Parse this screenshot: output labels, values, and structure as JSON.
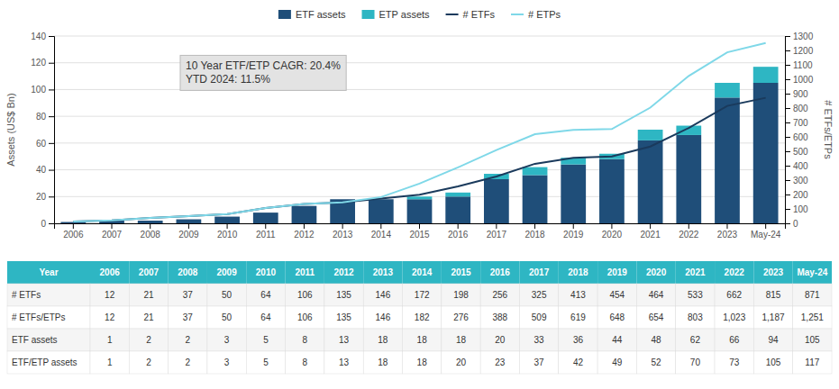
{
  "chart_data": {
    "type": "bar",
    "stacked": true,
    "grid": true,
    "categories": [
      "2006",
      "2007",
      "2008",
      "2009",
      "2010",
      "2011",
      "2012",
      "2013",
      "2014",
      "2015",
      "2016",
      "2017",
      "2018",
      "2019",
      "2020",
      "2021",
      "2022",
      "2023",
      "May-24"
    ],
    "ylabel": "Assets (US$ Bn)",
    "y2label": "# ETFs/ETPs",
    "ylim": [
      0,
      140
    ],
    "yticks": [
      0,
      20,
      40,
      60,
      80,
      100,
      120,
      140
    ],
    "y2lim": [
      0,
      1300
    ],
    "y2ticks": [
      0,
      100,
      200,
      300,
      400,
      500,
      600,
      700,
      800,
      900,
      1000,
      1100,
      1200,
      1300
    ],
    "annotations": [
      "10 Year ETF/ETP CAGR: 20.4%\nYTD 2024: 11.5%"
    ],
    "series": [
      {
        "name": "ETF assets",
        "type": "bar",
        "color": "#1f4e79",
        "values": [
          1,
          2,
          2,
          3,
          5,
          8,
          13,
          18,
          18,
          18,
          20,
          33,
          36,
          44,
          48,
          62,
          66,
          94,
          105
        ]
      },
      {
        "name": "ETP assets",
        "type": "bar",
        "color": "#2eb6c3",
        "values": [
          0,
          0,
          0,
          0,
          0,
          0,
          0,
          0,
          0,
          2,
          3,
          4,
          6,
          5,
          4,
          8,
          7,
          11,
          12
        ]
      },
      {
        "name": "# ETFs",
        "type": "line",
        "axis": "y2",
        "color": "#1a3a5c",
        "values": [
          12,
          21,
          37,
          50,
          64,
          106,
          135,
          146,
          172,
          198,
          256,
          325,
          413,
          454,
          464,
          533,
          662,
          815,
          871
        ]
      },
      {
        "name": "# ETPs",
        "type": "line",
        "axis": "y2",
        "color": "#7fd8e8",
        "values": [
          12,
          21,
          37,
          50,
          64,
          106,
          135,
          146,
          182,
          276,
          388,
          509,
          619,
          648,
          654,
          803,
          1023,
          1187,
          1251
        ]
      }
    ],
    "table": {
      "header": "Year",
      "rows": [
        {
          "name": "# ETFs",
          "values": [
            12,
            21,
            37,
            50,
            64,
            106,
            135,
            146,
            172,
            198,
            256,
            325,
            413,
            454,
            464,
            533,
            662,
            815,
            871
          ]
        },
        {
          "name": "# ETFs/ETPs",
          "values": [
            12,
            21,
            37,
            50,
            64,
            106,
            135,
            146,
            182,
            276,
            388,
            509,
            619,
            648,
            654,
            803,
            1023,
            1187,
            1251
          ],
          "value_labels": [
            "12",
            "21",
            "37",
            "50",
            "64",
            "106",
            "135",
            "146",
            "182",
            "276",
            "388",
            "509",
            "619",
            "648",
            "654",
            "803",
            "1,023",
            "1,187",
            "1,251"
          ]
        },
        {
          "name": "ETF assets",
          "values": [
            1,
            2,
            2,
            3,
            5,
            8,
            13,
            18,
            18,
            18,
            20,
            33,
            36,
            44,
            48,
            62,
            66,
            94,
            105
          ]
        },
        {
          "name": "ETF/ETP assets",
          "values": [
            1,
            2,
            2,
            3,
            5,
            8,
            13,
            18,
            18,
            20,
            23,
            37,
            42,
            49,
            52,
            70,
            73,
            105,
            117
          ]
        }
      ]
    }
  }
}
